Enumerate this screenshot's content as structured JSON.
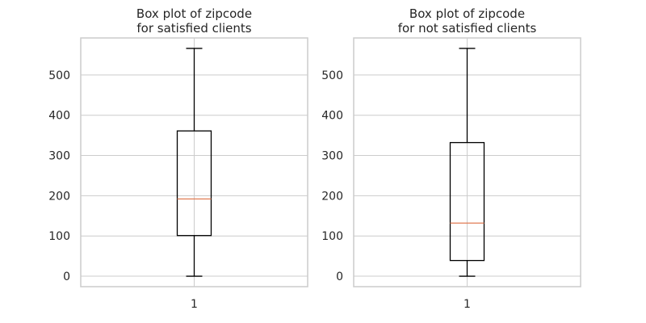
{
  "chart_data": [
    {
      "type": "box",
      "title": "Box plot of zipcode\nfor satisfied clients",
      "xticklabels": [
        "1"
      ],
      "yticks": [
        0,
        100,
        200,
        300,
        400,
        500
      ],
      "ylim": [
        -26,
        592
      ],
      "grid": true,
      "box": {
        "whisker_low": 0,
        "q1": 101,
        "median": 192,
        "q3": 361,
        "whisker_high": 566
      },
      "colors": {
        "box": "#000000",
        "median": "#e07b54",
        "grid": "#cccccc",
        "spine": "#cccccc"
      }
    },
    {
      "type": "box",
      "title": "Box plot of zipcode\nfor not satisfied clients",
      "xticklabels": [
        "1"
      ],
      "yticks": [
        0,
        100,
        200,
        300,
        400,
        500
      ],
      "ylim": [
        -26,
        592
      ],
      "grid": true,
      "box": {
        "whisker_low": 0,
        "q1": 39,
        "median": 132,
        "q3": 332,
        "whisker_high": 566
      },
      "colors": {
        "box": "#000000",
        "median": "#e07b54",
        "grid": "#cccccc",
        "spine": "#cccccc"
      }
    }
  ]
}
